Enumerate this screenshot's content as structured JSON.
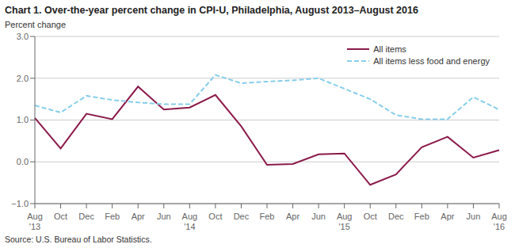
{
  "chart_data": {
    "type": "line",
    "title": "Chart 1. Over-the-year percent change in CPI-U, Philadelphia, August 2013–August 2016",
    "ylabel": "Percent change",
    "annotations": [
      "Source: U.S. Bureau of Labor Statistics."
    ],
    "categories": [
      "Aug\n'13",
      "Oct",
      "Dec",
      "Feb",
      "Apr",
      "Jun",
      "Aug\n'14",
      "Oct",
      "Dec",
      "Feb",
      "Apr",
      "Jun",
      "Aug\n'15",
      "Oct",
      "Dec",
      "Feb",
      "Apr",
      "Jun",
      "Aug\n'16"
    ],
    "series": [
      {
        "name": "All items",
        "color": "#8B1A4A",
        "line_style": "solid",
        "values": [
          1.05,
          0.32,
          1.15,
          1.02,
          1.8,
          1.25,
          1.3,
          1.6,
          0.85,
          -0.07,
          -0.05,
          0.18,
          0.2,
          -0.55,
          -0.3,
          0.35,
          0.6,
          0.1,
          0.28
        ]
      },
      {
        "name": "All items less food and energy",
        "color": "#87CEEB",
        "line_style": "dashed",
        "values": [
          1.35,
          1.18,
          1.58,
          1.48,
          1.42,
          1.38,
          1.38,
          2.08,
          1.88,
          1.92,
          1.95,
          2.0,
          1.75,
          1.5,
          1.12,
          1.02,
          1.02,
          1.55,
          1.25
        ]
      }
    ],
    "ylim": [
      -1.0,
      3.0
    ],
    "yticks": [
      {
        "value": -1.0,
        "label": "−1.0"
      },
      {
        "value": 0.0,
        "label": "0.0"
      },
      {
        "value": 1.0,
        "label": "1.0"
      },
      {
        "value": 2.0,
        "label": "2.0"
      },
      {
        "value": 3.0,
        "label": "3.0"
      }
    ],
    "grid": true,
    "legend": "upper right"
  }
}
